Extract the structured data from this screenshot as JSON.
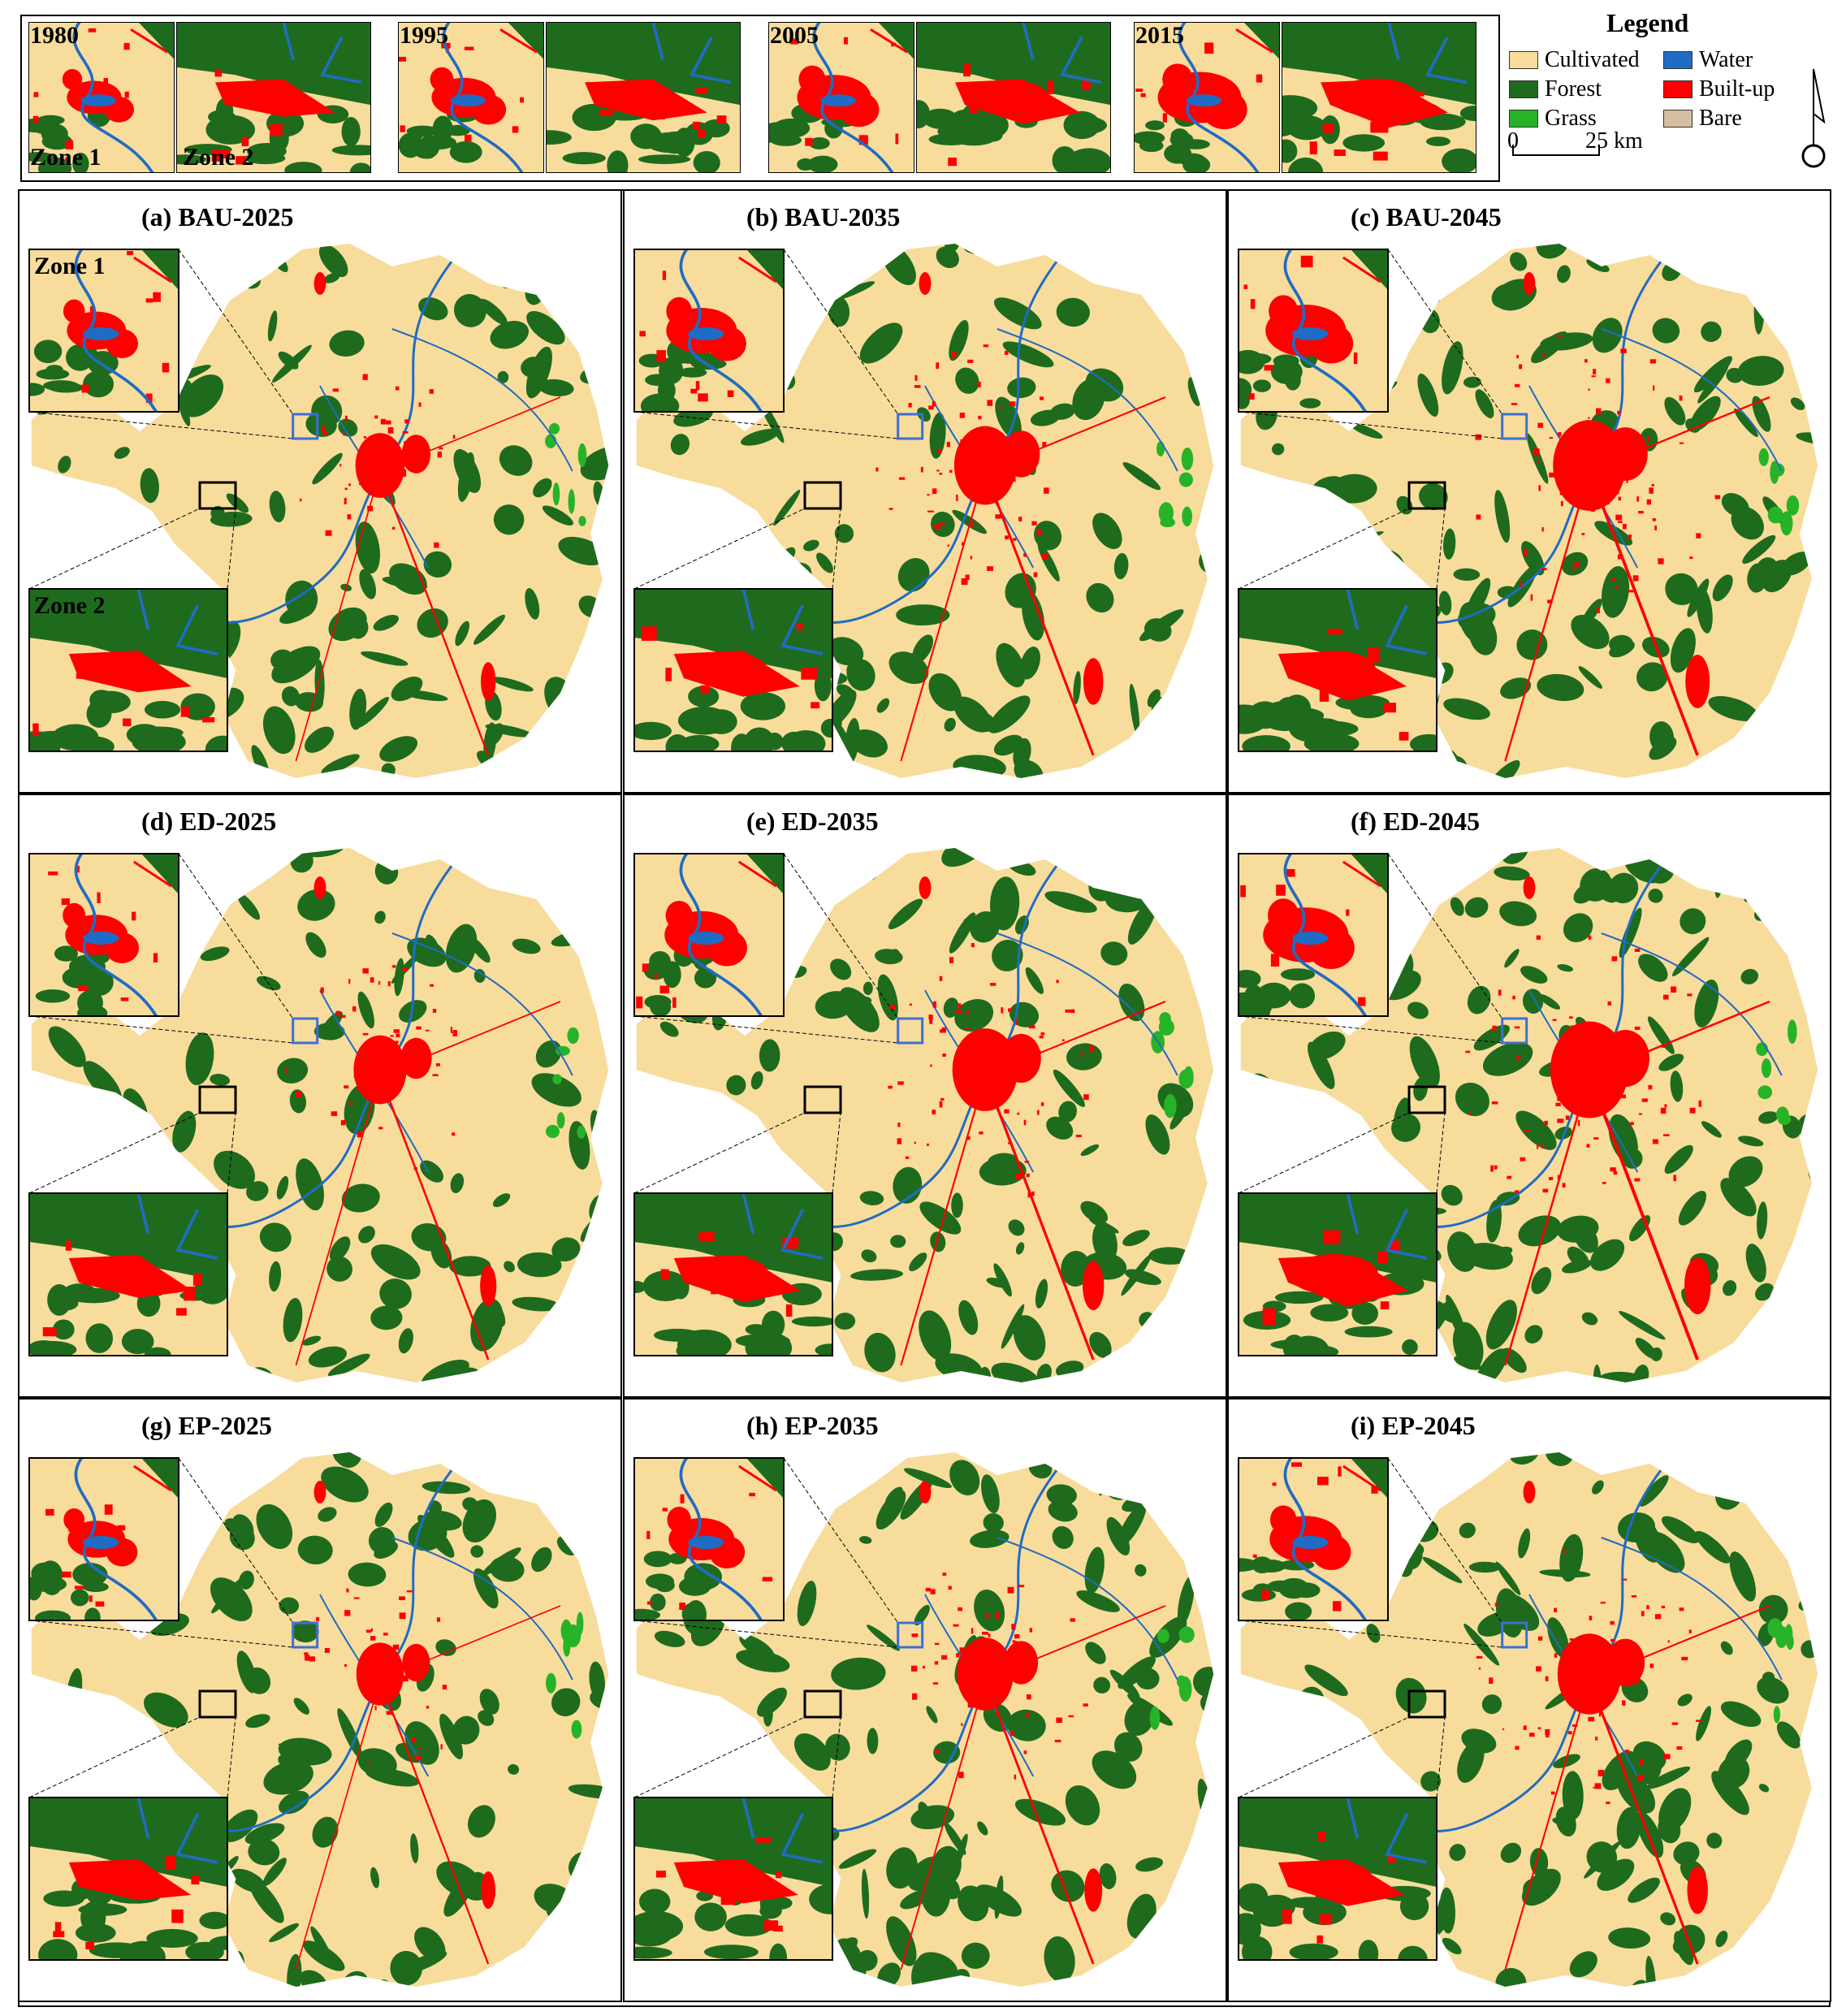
{
  "colors": {
    "cultivated": "#f8dc9c",
    "forest": "#1e6b1e",
    "grass": "#27b327",
    "water": "#1f6cc4",
    "builtup": "#ff0000",
    "bare": "#d6bfa0",
    "frame": "#000000",
    "zone1_box": "#3b6fd6",
    "zone2_box": "#000000"
  },
  "historical": {
    "panels": [
      {
        "year": "1980"
      },
      {
        "year": "1995"
      },
      {
        "year": "2005"
      },
      {
        "year": "2015"
      }
    ],
    "zone1_label": "Zone 1",
    "zone2_label": "Zone 2"
  },
  "legend": {
    "title": "Legend",
    "items": [
      {
        "label": "Cultivated",
        "color_key": "cultivated"
      },
      {
        "label": "Water",
        "color_key": "water"
      },
      {
        "label": "Forest",
        "color_key": "forest"
      },
      {
        "label": "Built-up",
        "color_key": "builtup"
      },
      {
        "label": "Grass",
        "color_key": "grass"
      },
      {
        "label": "Bare",
        "color_key": "bare"
      }
    ],
    "scale_start": "0",
    "scale_end": "25 km",
    "north_arrow_icon": "north-arrow-icon"
  },
  "scenario_maps": {
    "zone1_label": "Zone 1",
    "zone2_label": "Zone 2",
    "panels": [
      {
        "title": "(a) BAU-2025",
        "growth": 0.2
      },
      {
        "title": "(b) BAU-2035",
        "growth": 0.55
      },
      {
        "title": "(c) BAU-2045",
        "growth": 0.85
      },
      {
        "title": "(d) ED-2025",
        "growth": 0.3
      },
      {
        "title": "(e) ED-2035",
        "growth": 0.65
      },
      {
        "title": "(f) ED-2045",
        "growth": 1.0
      },
      {
        "title": "(g) EP-2025",
        "growth": 0.15
      },
      {
        "title": "(h) EP-2035",
        "growth": 0.4
      },
      {
        "title": "(i) EP-2045",
        "growth": 0.6
      }
    ]
  }
}
